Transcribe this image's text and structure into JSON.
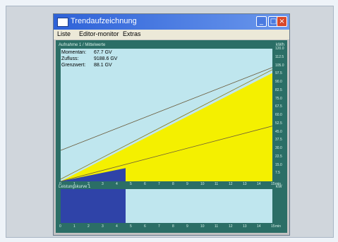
{
  "window": {
    "title": "Trendaufzeichnung",
    "menu": [
      "Liste",
      "Editor-monitor",
      "Extras"
    ]
  },
  "plot": {
    "header": "Aufnahme 1 / Mittelwerte",
    "corner_label": "kWh",
    "stats": [
      {
        "label": "Momentan:",
        "value": "67.7 GV"
      },
      {
        "label": "Zufluss:",
        "value": "9188.6 GV"
      },
      {
        "label": "Grenzwert:",
        "value": "88.1 GV"
      }
    ]
  },
  "lower": {
    "header": "Leistungskurve 1",
    "corner_label": "kW"
  },
  "colors": {
    "plot_bg": "#bfe6ee",
    "fill_yellow": "#f4f000",
    "fill_blue": "#2f43a8",
    "frame": "#2b6e66"
  },
  "chart_data": {
    "type": "area",
    "x": [
      0,
      1,
      2,
      3,
      4,
      5,
      6,
      7,
      8,
      9,
      10,
      11,
      12,
      13,
      14,
      15
    ],
    "xlim": [
      0,
      15
    ],
    "ylim": [
      0,
      120
    ],
    "y_ticks": [
      "7.5",
      "15.0",
      "22.5",
      "30.0",
      "37.5",
      "45.0",
      "52.5",
      "60.0",
      "67.5",
      "75.0",
      "82.5",
      "90.0",
      "97.5",
      "105.0",
      "112.5",
      "120.0"
    ],
    "x_ticks": [
      "0",
      "1",
      "2",
      "3",
      "4",
      "5",
      "6",
      "7",
      "8",
      "9",
      "10",
      "11",
      "12",
      "13",
      "14",
      "15"
    ],
    "x_unit": "min",
    "series": [
      {
        "kind": "area",
        "values": [
          [
            0,
            0
          ],
          [
            15,
            98
          ]
        ]
      },
      {
        "kind": "line",
        "values": [
          [
            0,
            2
          ],
          [
            15,
            101
          ]
        ]
      },
      {
        "kind": "line",
        "values": [
          [
            0,
            28
          ],
          [
            15,
            103
          ]
        ]
      },
      {
        "kind": "line",
        "values": [
          [
            0,
            0
          ],
          [
            15,
            50
          ]
        ]
      },
      {
        "kind": "area",
        "values": [
          [
            0,
            0
          ],
          [
            4.6,
            12
          ],
          [
            4.6,
            0
          ]
        ]
      }
    ],
    "lower": {
      "type": "bar",
      "x_ticks": [
        "0",
        "1",
        "2",
        "3",
        "4",
        "5",
        "6",
        "7",
        "8",
        "9",
        "10",
        "11",
        "12",
        "13",
        "14",
        "15"
      ],
      "x_unit": "min",
      "filled_until": 4.6,
      "xlim": [
        0,
        15
      ]
    }
  }
}
